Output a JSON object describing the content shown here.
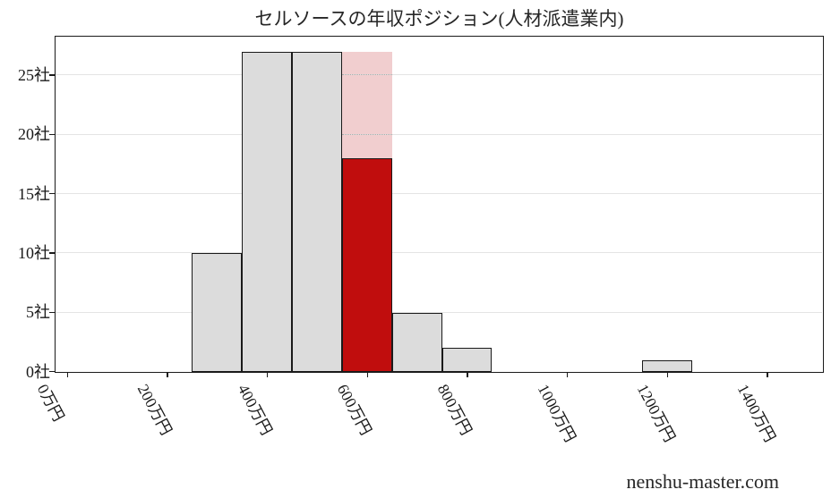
{
  "chart_data": {
    "type": "bar",
    "title": "セルソースの年収ポジション(人材派遣業内)",
    "watermark": "nenshu-master.com",
    "xlabel": "",
    "ylabel": "",
    "x_unit": "万円",
    "y_unit": "社",
    "bins": [
      {
        "from": 250,
        "to": 350,
        "count": 10,
        "highlight": false
      },
      {
        "from": 350,
        "to": 450,
        "count": 27,
        "highlight": false
      },
      {
        "from": 450,
        "to": 550,
        "count": 27,
        "highlight": false
      },
      {
        "from": 550,
        "to": 650,
        "count": 18,
        "highlight": true,
        "band_top": 27
      },
      {
        "from": 650,
        "to": 750,
        "count": 5,
        "highlight": false
      },
      {
        "from": 750,
        "to": 850,
        "count": 2,
        "highlight": false
      },
      {
        "from": 1150,
        "to": 1250,
        "count": 1,
        "highlight": false
      }
    ],
    "yticks": [
      {
        "value": 0,
        "label": "0社"
      },
      {
        "value": 5,
        "label": "5社"
      },
      {
        "value": 10,
        "label": "10社"
      },
      {
        "value": 15,
        "label": "15社"
      },
      {
        "value": 20,
        "label": "20社"
      },
      {
        "value": 25,
        "label": "25社"
      }
    ],
    "xticks": [
      {
        "value": 0,
        "label": "0万円"
      },
      {
        "value": 200,
        "label": "200万円"
      },
      {
        "value": 400,
        "label": "400万円"
      },
      {
        "value": 600,
        "label": "600万円"
      },
      {
        "value": 800,
        "label": "800万円"
      },
      {
        "value": 1000,
        "label": "1000万円"
      },
      {
        "value": 1200,
        "label": "1200万円"
      },
      {
        "value": 1400,
        "label": "1400万円"
      }
    ],
    "xlim": [
      -23,
      1510
    ],
    "ylim": [
      0,
      28.2
    ],
    "grid": true,
    "legend": false,
    "colors": {
      "bar_fill": "#dcdcdc",
      "bar_edge": "#1a1a1a",
      "highlight_fill": "#c00d0d",
      "highlight_band_fill": "#f1cecf",
      "grid_line": "#e4e4e4",
      "axis": "#1a1a1a",
      "text": "#262626"
    }
  }
}
